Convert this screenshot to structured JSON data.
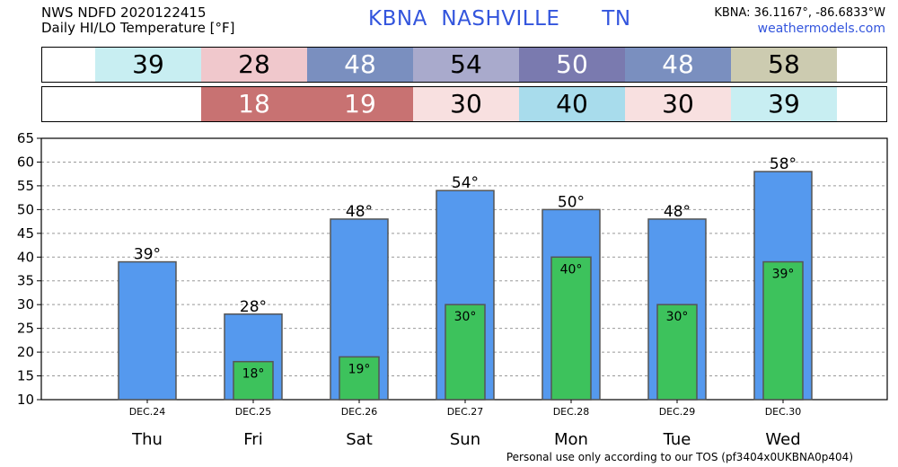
{
  "header": {
    "line1": "NWS NDFD 2020122415",
    "line2": "Daily HI/LO Temperature [°F]",
    "station": "KBNA  NASHVILLE      TN",
    "coords": "KBNA: 36.1167°, -86.6833°W",
    "site": "weathermodels.com"
  },
  "hi_strip": [
    {
      "value": "39",
      "bg": "#c8eef2",
      "fg": "#000000"
    },
    {
      "value": "28",
      "bg": "#f0c8cc",
      "fg": "#000000"
    },
    {
      "value": "48",
      "bg": "#7a8fbf",
      "fg": "#ffffff"
    },
    {
      "value": "54",
      "bg": "#a9aacc",
      "fg": "#000000"
    },
    {
      "value": "50",
      "bg": "#7a7aaf",
      "fg": "#ffffff"
    },
    {
      "value": "48",
      "bg": "#7a8fbf",
      "fg": "#ffffff"
    },
    {
      "value": "58",
      "bg": "#cccbb0",
      "fg": "#000000"
    }
  ],
  "lo_strip": [
    {
      "value": "",
      "bg": "#ffffff",
      "fg": "#000000"
    },
    {
      "value": "18",
      "bg": "#c87272",
      "fg": "#ffffff"
    },
    {
      "value": "19",
      "bg": "#c87272",
      "fg": "#ffffff"
    },
    {
      "value": "30",
      "bg": "#f8e0e0",
      "fg": "#000000"
    },
    {
      "value": "40",
      "bg": "#a8dcec",
      "fg": "#000000"
    },
    {
      "value": "30",
      "bg": "#f8e0e0",
      "fg": "#000000"
    },
    {
      "value": "39",
      "bg": "#c8eef2",
      "fg": "#000000"
    }
  ],
  "chart_data": {
    "type": "bar",
    "categories": [
      "Thu",
      "Fri",
      "Sat",
      "Sun",
      "Mon",
      "Tue",
      "Wed"
    ],
    "dates": [
      "DEC.24",
      "DEC.25",
      "DEC.26",
      "DEC.27",
      "DEC.28",
      "DEC.29",
      "DEC.30"
    ],
    "series": [
      {
        "values": [
          39,
          28,
          48,
          54,
          50,
          48,
          58
        ],
        "color": "#5599ee"
      },
      {
        "values": [
          null,
          18,
          19,
          30,
          40,
          30,
          39
        ],
        "color": "#3dc25c"
      }
    ],
    "hi_labels": [
      "39°",
      "28°",
      "48°",
      "54°",
      "50°",
      "48°",
      "58°"
    ],
    "lo_labels": [
      "",
      "18°",
      "19°",
      "30°",
      "40°",
      "30°",
      "39°"
    ],
    "ylim": [
      10,
      65
    ],
    "yticks": [
      "10",
      "15",
      "20",
      "25",
      "30",
      "35",
      "40",
      "45",
      "50",
      "55",
      "60",
      "65"
    ],
    "grid": true
  },
  "footer": {
    "tos": "Personal use only according to our TOS (pf3404x0UKBNA0p404)"
  }
}
